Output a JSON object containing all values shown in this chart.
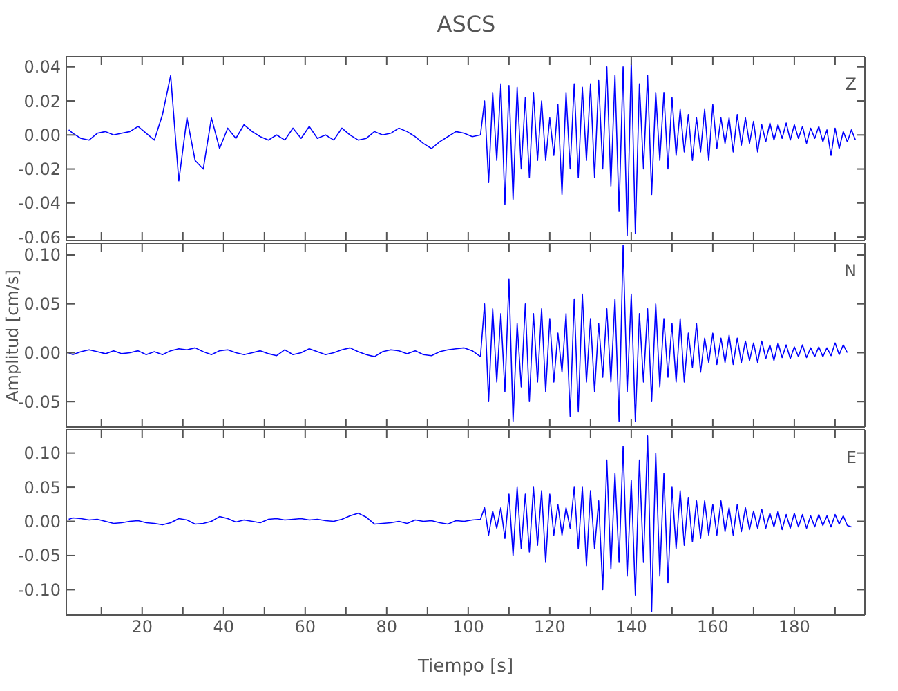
{
  "chart_data": [
    {
      "type": "line",
      "title": "ASCS",
      "annotations": [
        "Z"
      ],
      "tick_labels": "y",
      "x": [
        2,
        3,
        5,
        7,
        9,
        11,
        13,
        15,
        17,
        19,
        21,
        23,
        25,
        27,
        29,
        31,
        33,
        35,
        37,
        39,
        41,
        43,
        45,
        47,
        49,
        51,
        53,
        55,
        57,
        59,
        61,
        63,
        65,
        67,
        69,
        71,
        73,
        75,
        77,
        79,
        81,
        83,
        85,
        87,
        89,
        91,
        93,
        95,
        97,
        99,
        101,
        103,
        104,
        105,
        106,
        107,
        108,
        109,
        110,
        111,
        112,
        113,
        114,
        115,
        116,
        117,
        118,
        119,
        120,
        121,
        122,
        123,
        124,
        125,
        126,
        127,
        128,
        129,
        130,
        131,
        132,
        133,
        134,
        135,
        136,
        137,
        138,
        139,
        140,
        141,
        142,
        143,
        144,
        145,
        146,
        147,
        148,
        149,
        150,
        151,
        152,
        153,
        154,
        155,
        156,
        157,
        158,
        159,
        160,
        161,
        162,
        163,
        164,
        165,
        166,
        167,
        168,
        169,
        170,
        171,
        172,
        173,
        174,
        175,
        176,
        177,
        178,
        179,
        180,
        181,
        182,
        183,
        184,
        185,
        186,
        187,
        188,
        189,
        190,
        191,
        192,
        193,
        194,
        195
      ],
      "series": [
        {
          "color": "#0000ff",
          "values": [
            0.003,
            0.001,
            -0.002,
            -0.003,
            0.001,
            0.002,
            0.0,
            0.001,
            0.002,
            0.005,
            0.001,
            -0.003,
            0.012,
            0.035,
            -0.027,
            0.01,
            -0.015,
            -0.02,
            0.01,
            -0.008,
            0.004,
            -0.002,
            0.006,
            0.002,
            -0.001,
            -0.003,
            0.0,
            -0.003,
            0.004,
            -0.002,
            0.005,
            -0.002,
            0.0,
            -0.003,
            0.004,
            0.0,
            -0.003,
            -0.002,
            0.002,
            0.0,
            0.001,
            0.004,
            0.002,
            -0.001,
            -0.005,
            -0.008,
            -0.004,
            -0.001,
            0.002,
            0.001,
            -0.001,
            0.0,
            0.02,
            -0.028,
            0.025,
            -0.015,
            0.03,
            -0.041,
            0.029,
            -0.038,
            0.028,
            -0.02,
            0.022,
            -0.025,
            0.025,
            -0.015,
            0.02,
            -0.015,
            0.01,
            -0.012,
            0.018,
            -0.035,
            0.025,
            -0.02,
            0.03,
            -0.025,
            0.028,
            -0.015,
            0.03,
            -0.025,
            0.032,
            -0.02,
            0.04,
            -0.03,
            0.035,
            -0.045,
            0.04,
            -0.059,
            0.044,
            -0.058,
            0.03,
            -0.02,
            0.035,
            -0.035,
            0.025,
            -0.015,
            0.025,
            -0.02,
            0.022,
            -0.012,
            0.015,
            -0.01,
            0.012,
            -0.015,
            0.01,
            -0.01,
            0.015,
            -0.015,
            0.018,
            -0.008,
            0.01,
            -0.005,
            0.01,
            -0.01,
            0.012,
            -0.006,
            0.01,
            -0.005,
            0.008,
            -0.01,
            0.006,
            -0.004,
            0.007,
            -0.003,
            0.006,
            -0.002,
            0.007,
            -0.003,
            0.006,
            -0.002,
            0.005,
            -0.005,
            0.004,
            -0.002,
            0.005,
            -0.004,
            0.003,
            -0.012,
            0.004,
            -0.008,
            0.002,
            -0.004,
            0.003,
            -0.003
          ]
        }
      ],
      "xlim": [
        1.4,
        197.3
      ],
      "xticks": [
        {
          "value": 10,
          "label": null
        },
        20,
        {
          "value": 30,
          "label": null
        },
        40,
        {
          "value": 50,
          "label": null
        },
        60,
        {
          "value": 70,
          "label": null
        },
        80,
        {
          "value": 90,
          "label": null
        },
        100,
        {
          "value": 110,
          "label": null
        },
        120,
        {
          "value": 130,
          "label": null
        },
        140,
        {
          "value": 150,
          "label": null
        },
        160,
        {
          "value": 170,
          "label": null
        },
        180,
        {
          "value": 190,
          "label": null
        }
      ],
      "ylim": [
        -0.062,
        0.046
      ],
      "yticks": [
        {
          "value": -0.06,
          "label": "-0.06"
        },
        {
          "value": -0.04,
          "label": "-0.04"
        },
        {
          "value": -0.02,
          "label": "-0.02"
        },
        {
          "value": 0,
          "label": "0.00"
        },
        {
          "value": 0.02,
          "label": "0.02"
        },
        {
          "value": 0.04,
          "label": "0.04"
        }
      ]
    },
    {
      "type": "line",
      "ylabel": "Amplitud [cm/s]",
      "annotations": [
        "N"
      ],
      "tick_labels": "y",
      "x": [
        2,
        3,
        5,
        7,
        9,
        11,
        13,
        15,
        17,
        19,
        21,
        23,
        25,
        27,
        29,
        31,
        33,
        35,
        37,
        39,
        41,
        43,
        45,
        47,
        49,
        51,
        53,
        55,
        57,
        59,
        61,
        63,
        65,
        67,
        69,
        71,
        73,
        75,
        77,
        79,
        81,
        83,
        85,
        87,
        89,
        91,
        93,
        95,
        97,
        99,
        101,
        103,
        104,
        105,
        106,
        107,
        108,
        109,
        110,
        111,
        112,
        113,
        114,
        115,
        116,
        117,
        118,
        119,
        120,
        121,
        122,
        123,
        124,
        125,
        126,
        127,
        128,
        129,
        130,
        131,
        132,
        133,
        134,
        135,
        136,
        137,
        138,
        139,
        140,
        141,
        142,
        143,
        144,
        145,
        146,
        147,
        148,
        149,
        150,
        151,
        152,
        153,
        154,
        155,
        156,
        157,
        158,
        159,
        160,
        161,
        162,
        163,
        164,
        165,
        166,
        167,
        168,
        169,
        170,
        171,
        172,
        173,
        174,
        175,
        176,
        177,
        178,
        179,
        180,
        181,
        182,
        183,
        184,
        185,
        186,
        187,
        188,
        189,
        190,
        191,
        192,
        193
      ],
      "series": [
        {
          "color": "#0000ff",
          "values": [
            0.0,
            -0.002,
            0.001,
            0.003,
            0.001,
            -0.001,
            0.002,
            -0.001,
            0.0,
            0.002,
            -0.002,
            0.001,
            -0.002,
            0.002,
            0.004,
            0.003,
            0.005,
            0.001,
            -0.002,
            0.002,
            0.003,
            0.0,
            -0.002,
            0.0,
            0.002,
            -0.001,
            -0.003,
            0.003,
            -0.002,
            0.0,
            0.004,
            0.001,
            -0.002,
            0.0,
            0.003,
            0.005,
            0.001,
            -0.002,
            -0.004,
            0.001,
            0.003,
            0.002,
            -0.001,
            0.002,
            -0.002,
            -0.003,
            0.001,
            0.003,
            0.004,
            0.005,
            0.002,
            -0.004,
            0.05,
            -0.05,
            0.045,
            -0.03,
            0.04,
            -0.04,
            0.075,
            -0.07,
            0.03,
            -0.035,
            0.05,
            -0.05,
            0.04,
            -0.03,
            0.045,
            -0.04,
            0.035,
            -0.03,
            0.02,
            -0.02,
            0.04,
            -0.065,
            0.055,
            -0.06,
            0.06,
            -0.03,
            0.035,
            -0.04,
            0.03,
            -0.025,
            0.045,
            -0.03,
            0.055,
            -0.07,
            0.11,
            -0.04,
            0.06,
            -0.07,
            0.04,
            -0.03,
            0.045,
            -0.05,
            0.05,
            -0.035,
            0.035,
            -0.025,
            0.03,
            -0.03,
            0.035,
            -0.03,
            0.02,
            -0.015,
            0.03,
            -0.02,
            0.015,
            -0.01,
            0.02,
            -0.012,
            0.015,
            -0.01,
            0.018,
            -0.012,
            0.015,
            -0.01,
            0.012,
            -0.008,
            0.01,
            -0.01,
            0.012,
            -0.006,
            0.008,
            -0.008,
            0.01,
            -0.005,
            0.008,
            -0.006,
            0.006,
            -0.004,
            0.008,
            -0.005,
            0.005,
            -0.004,
            0.006,
            -0.004,
            0.005,
            -0.003,
            0.01,
            -0.002,
            0.008,
            0.0
          ]
        }
      ],
      "xlim": [
        1.4,
        197.3
      ],
      "xticks": [
        {
          "value": 10,
          "label": null
        },
        20,
        {
          "value": 30,
          "label": null
        },
        40,
        {
          "value": 50,
          "label": null
        },
        60,
        {
          "value": 70,
          "label": null
        },
        80,
        {
          "value": 90,
          "label": null
        },
        100,
        {
          "value": 110,
          "label": null
        },
        120,
        {
          "value": 130,
          "label": null
        },
        140,
        {
          "value": 150,
          "label": null
        },
        160,
        {
          "value": 170,
          "label": null
        },
        180,
        {
          "value": 190,
          "label": null
        }
      ],
      "ylim": [
        -0.076,
        0.112
      ],
      "yticks": [
        {
          "value": -0.05,
          "label": "-0.05"
        },
        {
          "value": 0,
          "label": "0.00"
        },
        {
          "value": 0.05,
          "label": "0.05"
        },
        {
          "value": 0.1,
          "label": "0.10"
        }
      ]
    },
    {
      "type": "line",
      "xlabel": "Tiempo [s]",
      "annotations": [
        "E"
      ],
      "x": [
        2,
        3,
        5,
        7,
        9,
        11,
        13,
        15,
        17,
        19,
        21,
        23,
        25,
        27,
        29,
        31,
        33,
        35,
        37,
        39,
        41,
        43,
        45,
        47,
        49,
        51,
        53,
        55,
        57,
        59,
        61,
        63,
        65,
        67,
        69,
        71,
        73,
        75,
        77,
        79,
        81,
        83,
        85,
        87,
        89,
        91,
        93,
        95,
        97,
        99,
        101,
        103,
        104,
        105,
        106,
        107,
        108,
        109,
        110,
        111,
        112,
        113,
        114,
        115,
        116,
        117,
        118,
        119,
        120,
        121,
        122,
        123,
        124,
        125,
        126,
        127,
        128,
        129,
        130,
        131,
        132,
        133,
        134,
        135,
        136,
        137,
        138,
        139,
        140,
        141,
        142,
        143,
        144,
        145,
        146,
        147,
        148,
        149,
        150,
        151,
        152,
        153,
        154,
        155,
        156,
        157,
        158,
        159,
        160,
        161,
        162,
        163,
        164,
        165,
        166,
        167,
        168,
        169,
        170,
        171,
        172,
        173,
        174,
        175,
        176,
        177,
        178,
        179,
        180,
        181,
        182,
        183,
        184,
        185,
        186,
        187,
        188,
        189,
        190,
        191,
        192,
        193,
        194
      ],
      "series": [
        {
          "color": "#0000ff",
          "values": [
            0.003,
            0.005,
            0.004,
            0.002,
            0.003,
            0.0,
            -0.003,
            -0.002,
            0.0,
            0.001,
            -0.002,
            -0.003,
            -0.005,
            -0.002,
            0.004,
            0.002,
            -0.004,
            -0.003,
            0.0,
            0.007,
            0.004,
            -0.001,
            0.002,
            0.0,
            -0.002,
            0.003,
            0.004,
            0.002,
            0.003,
            0.004,
            0.002,
            0.003,
            0.001,
            0.0,
            0.003,
            0.008,
            0.012,
            0.006,
            -0.004,
            -0.003,
            -0.002,
            0.0,
            -0.003,
            0.002,
            0.0,
            0.001,
            -0.002,
            -0.004,
            0.001,
            0.0,
            0.002,
            0.003,
            0.02,
            -0.02,
            0.015,
            -0.01,
            0.02,
            -0.025,
            0.04,
            -0.05,
            0.05,
            -0.04,
            0.04,
            -0.045,
            0.05,
            -0.035,
            0.045,
            -0.06,
            0.04,
            -0.02,
            0.025,
            -0.02,
            0.02,
            -0.01,
            0.05,
            -0.04,
            0.05,
            -0.065,
            0.045,
            -0.04,
            0.03,
            -0.1,
            0.09,
            -0.07,
            0.07,
            -0.06,
            0.11,
            -0.08,
            0.06,
            -0.108,
            0.09,
            -0.06,
            0.125,
            -0.132,
            0.1,
            -0.08,
            0.07,
            -0.09,
            0.05,
            -0.04,
            0.045,
            -0.035,
            0.035,
            -0.03,
            0.03,
            -0.025,
            0.03,
            -0.02,
            0.025,
            -0.02,
            0.03,
            -0.015,
            0.02,
            -0.02,
            0.025,
            -0.015,
            0.02,
            -0.012,
            0.015,
            -0.01,
            0.018,
            -0.01,
            0.012,
            -0.008,
            0.015,
            -0.012,
            0.01,
            -0.01,
            0.012,
            -0.008,
            0.01,
            -0.01,
            0.008,
            -0.008,
            0.01,
            -0.006,
            0.008,
            -0.008,
            0.01,
            -0.004,
            0.008,
            -0.006,
            -0.008
          ]
        }
      ],
      "xlim": [
        1.4,
        197.3
      ],
      "xticks": [
        {
          "value": 10,
          "label": null
        },
        20,
        {
          "value": 30,
          "label": null
        },
        40,
        {
          "value": 50,
          "label": null
        },
        60,
        {
          "value": 70,
          "label": null
        },
        80,
        {
          "value": 90,
          "label": null
        },
        100,
        {
          "value": 110,
          "label": null
        },
        120,
        {
          "value": 130,
          "label": null
        },
        140,
        {
          "value": 150,
          "label": null
        },
        160,
        {
          "value": 170,
          "label": null
        },
        180,
        {
          "value": 190,
          "label": null
        }
      ],
      "ylim": [
        -0.137,
        0.134
      ],
      "yticks": [
        {
          "value": -0.1,
          "label": "-0.10"
        },
        {
          "value": -0.05,
          "label": "-0.05"
        },
        {
          "value": 0,
          "label": "0.00"
        },
        {
          "value": 0.05,
          "label": "0.05"
        },
        {
          "value": 0.1,
          "label": "0.10"
        }
      ]
    }
  ]
}
